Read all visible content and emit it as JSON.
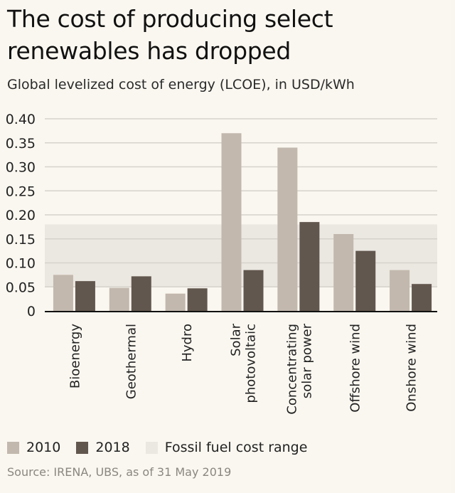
{
  "header": {
    "title": "The cost of producing select renewables has dropped",
    "subtitle": "Global levelized cost of energy (LCOE), in USD/kWh"
  },
  "chart_data": {
    "type": "bar",
    "title": "The cost of producing select renewables has dropped",
    "subtitle": "Global levelized cost of energy (LCOE), in USD/kWh",
    "xlabel": "",
    "ylabel": "USD/kWh",
    "ylim": [
      0,
      0.4
    ],
    "yticks": [
      0,
      0.05,
      0.1,
      0.15,
      0.2,
      0.25,
      0.3,
      0.35,
      0.4
    ],
    "ytick_labels": [
      "0",
      "0.05",
      "0.10",
      "0.15",
      "0.20",
      "0.25",
      "0.30",
      "0.35",
      "0.40"
    ],
    "grid": true,
    "categories": [
      [
        "Bioenergy"
      ],
      [
        "Geothermal"
      ],
      [
        "Hydro"
      ],
      [
        "Solar",
        "photovoltaic"
      ],
      [
        "Concentrating",
        "solar power"
      ],
      [
        "Offshore wind"
      ],
      [
        "Onshore wind"
      ]
    ],
    "series": [
      {
        "name": "2010",
        "color": "#c2b8ad",
        "values": [
          0.075,
          0.048,
          0.036,
          0.37,
          0.34,
          0.16,
          0.085
        ]
      },
      {
        "name": "2018",
        "color": "#62574e",
        "values": [
          0.062,
          0.072,
          0.047,
          0.085,
          0.185,
          0.125,
          0.056
        ]
      }
    ],
    "band": {
      "name": "Fossil fuel cost range",
      "color": "#ebe7e1",
      "range": [
        0.05,
        0.18
      ]
    },
    "legend_position": "bottom-left"
  },
  "legend": {
    "items": [
      {
        "label": "2010",
        "color": "#c2b8ad"
      },
      {
        "label": "2018",
        "color": "#62574e"
      },
      {
        "label": "Fossil fuel cost range",
        "color": "#ebe7e1"
      }
    ]
  },
  "footer": {
    "source": "Source: IRENA, UBS, as of 31 May 2019"
  }
}
